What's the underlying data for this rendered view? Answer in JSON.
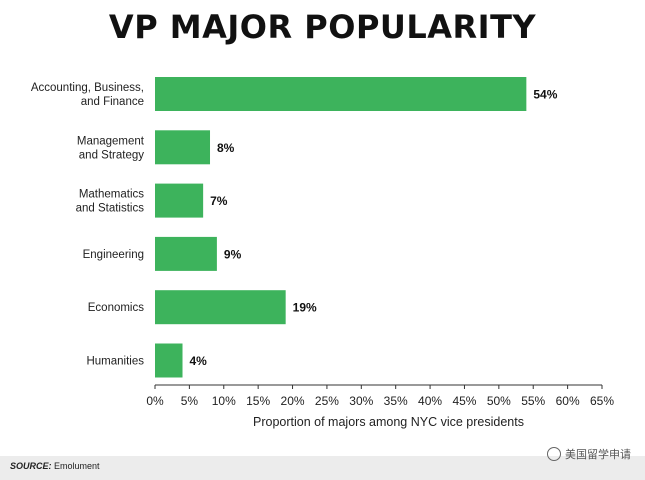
{
  "chart_data": {
    "type": "bar",
    "orientation": "horizontal",
    "title": "VP MAJOR POPULARITY",
    "categories": [
      [
        "Accounting, Business,",
        "and Finance"
      ],
      [
        "Management",
        "and Strategy"
      ],
      [
        "Mathematics",
        "and Statistics"
      ],
      [
        "Engineering"
      ],
      [
        "Economics"
      ],
      [
        "Humanities"
      ]
    ],
    "values": [
      54,
      8,
      7,
      9,
      19,
      4
    ],
    "data_labels": [
      "54%",
      "8%",
      "7%",
      "9%",
      "19%",
      "4%"
    ],
    "xlabel": "Proportion of majors among NYC vice presidents",
    "xlim": [
      0,
      65
    ],
    "xticks": [
      0,
      5,
      10,
      15,
      20,
      25,
      30,
      35,
      40,
      45,
      50,
      55,
      60,
      65
    ],
    "xtick_labels": [
      "0%",
      "5%",
      "10%",
      "15%",
      "20%",
      "25%",
      "30%",
      "35%",
      "40%",
      "45%",
      "50%",
      "55%",
      "60%",
      "65%"
    ],
    "grid": false,
    "bar_color": "#3db35c"
  },
  "footer": {
    "source_label": "SOURCE:",
    "source_text": " Emolument",
    "watermark": "美国留学申请"
  }
}
